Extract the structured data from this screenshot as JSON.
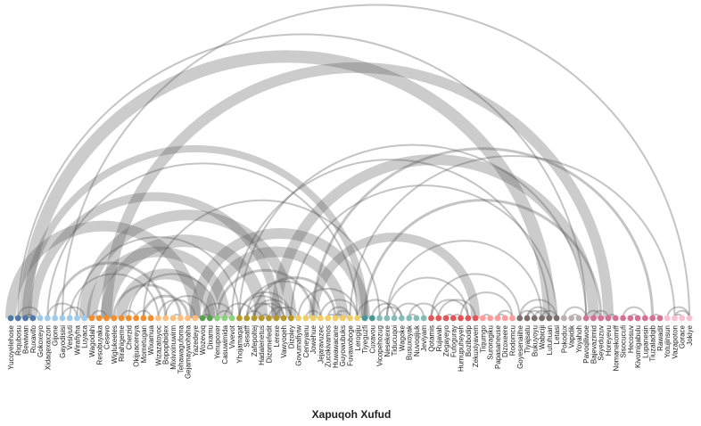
{
  "title": "Xapuqoh Xufud",
  "groups": [
    {
      "color": "#4e79a7",
      "nodes": [
        "Yucoyelehose",
        "Riqubosu",
        "Bewiwan",
        "Ruxavifo"
      ]
    },
    {
      "color": "#a0cbe8",
      "nodes": [
        "Gokoxeyo",
        "Xidaqexaxzon",
        "Gijone",
        "Gayodisisi",
        "Vesiyuti",
        "Wirafiyha",
        "Luyaca"
      ]
    },
    {
      "color": "#f28e2b",
      "nodes": [
        "Wagodahi",
        "Resobuyaka",
        "Cesevo",
        "Wiglukeeles",
        "Rirahigeme",
        "Cherzid",
        "Okijuacereya",
        "Mometugan",
        "Wixamua"
      ]
    },
    {
      "color": "#ffbe7d",
      "nodes": [
        "Wizazatoyoc",
        "Bopopibidex",
        "Mixivxinuwirm",
        "Tehawagufoma",
        "Gejamaywohaha",
        "Yazedeye"
      ]
    },
    {
      "color": "#59a14f",
      "nodes": [
        "Wozevoq",
        "Dixamu"
      ]
    },
    {
      "color": "#8cd17d",
      "nodes": [
        "Yenupoxer",
        "Casuwimida",
        "Vivevot"
      ]
    },
    {
      "color": "#b6992d",
      "nodes": [
        "Yhojamaqat",
        "Sesatff",
        "Zafepoltej",
        "Hadalenetus",
        "Dizomefedit",
        "Lerexe",
        "Vawyoqeh",
        "Dizoley"
      ]
    },
    {
      "color": "#f1ce63",
      "nodes": [
        "Govumafiyiw",
        "Ceneyanu",
        "Jowehue",
        "Jejaravuzec",
        "Zucokivamos",
        "Huwawacane",
        "Guyowubuks",
        "Fuvawoboge",
        "Lerogiju"
      ]
    },
    {
      "color": "#499894",
      "nodes": [
        "Tiyeguzfi",
        "Cuxavou"
      ]
    },
    {
      "color": "#86bcb6",
      "nodes": [
        "Vicopehozug",
        "Nesekexe",
        "Tiducuqoi",
        "Wagoke",
        "Busuxoyak",
        "Nuvoqijuk",
        "Jeviyam"
      ]
    },
    {
      "color": "#e15759",
      "nodes": [
        "Qotamis",
        "Rujavah",
        "Zegayeyo",
        "Fufoguray",
        "Humupuheyeh",
        "Bozibodip",
        "Zekuxiyavem"
      ]
    },
    {
      "color": "#ff9d9a",
      "nodes": [
        "Tiqumgo",
        "Suroragiku",
        "Papasaneuse",
        "Dizoxeere",
        "Rodomcu"
      ]
    },
    {
      "color": "#79706e",
      "nodes": [
        "Goyesenaiihe",
        "Tiyajsatu",
        "Bukuyoyu",
        "Wabiciji",
        "Lutuhuan",
        "Letasi"
      ]
    },
    {
      "color": "#bab0ac",
      "nodes": [
        "Pokodux",
        "Vapidik",
        "Yoyahoh"
      ]
    },
    {
      "color": "#d37295",
      "nodes": [
        "Pavoqiliwoe",
        "Bajevazimid",
        "Seyeduzuv",
        "Horeyevu",
        "Nomanekomiff",
        "Sisocucufi",
        "Hecosuv",
        "Kivomigabulu",
        "Lupanesin",
        "Tiuzaladqib",
        "Rawadit"
      ]
    },
    {
      "color": "#fabfd2",
      "nodes": [
        "Yotujinsun",
        "Vazapoton",
        "Gorace",
        "Jokiye"
      ]
    }
  ],
  "links": [
    [
      "Riqubosu",
      "Pavoqiliwoe",
      2
    ],
    [
      "Bewiwan",
      "Lutuhuan",
      14
    ],
    [
      "Yucoyelehose",
      "Yazedeye",
      12
    ],
    [
      "Ruxavifo",
      "Lerexe",
      10
    ],
    [
      "Bewiwan",
      "Tiyeguzfi",
      8
    ],
    [
      "Gijone",
      "Bopopibidex",
      3
    ],
    [
      "Wirafiyha",
      "Yhojamaqat",
      2
    ],
    [
      "Luyaca",
      "Dizoley",
      12
    ],
    [
      "Vesiyuti",
      "Wizazatoyoc",
      2
    ],
    [
      "Gayodisisi",
      "Luyaca",
      2
    ],
    [
      "Xidaqexaxzon",
      "Wirafiyha",
      2
    ],
    [
      "Cesevo",
      "Horeyevu",
      12
    ],
    [
      "Wagodahi",
      "Casuwimida",
      12
    ],
    [
      "Rirahigeme",
      "Dixamu",
      12
    ],
    [
      "Cesevo",
      "Hadalenetus",
      14
    ],
    [
      "Wiglukeeles",
      "Tehawagufoma",
      3
    ],
    [
      "Cherzid",
      "Yenupoxer",
      2
    ],
    [
      "Okijuacereya",
      "Wixamua",
      2
    ],
    [
      "Mometugan",
      "Gejamaywohaha",
      3
    ],
    [
      "Wizazatoyoc",
      "Yazedeye",
      2
    ],
    [
      "Bopopibidex",
      "Dixamu",
      2
    ],
    [
      "Mixivxinuwirm",
      "Tehawagufoma",
      2
    ],
    [
      "Yazedeye",
      "Tiyeguzfi",
      12
    ],
    [
      "Wozevoq",
      "Vivevot",
      2
    ],
    [
      "Dixamu",
      "Guyowubuks",
      12
    ],
    [
      "Yenupoxer",
      "Jowehue",
      3
    ],
    [
      "Vivevot",
      "Lutuhuan",
      2
    ],
    [
      "Casuwimida",
      "Zafepoltej",
      2
    ],
    [
      "Yhojamaqat",
      "Dizoley",
      2
    ],
    [
      "Sesatff",
      "Lerexe",
      2
    ],
    [
      "Zafepoltej",
      "Vawyoqeh",
      2
    ],
    [
      "Hadalenetus",
      "Dizomefedit",
      2
    ],
    [
      "Dizomefedit",
      "Dizoley",
      2
    ],
    [
      "Lerexe",
      "Govumafiyiw",
      2
    ],
    [
      "Vawyoqeh",
      "Yhojamaqat",
      2
    ],
    [
      "Dizoley",
      "Zafepoltej",
      2
    ],
    [
      "Hadalenetus",
      "Sesatff",
      2
    ],
    [
      "Lerexe",
      "Bajevazimid",
      12
    ],
    [
      "Zafepoltej",
      "Huwawacane",
      3
    ],
    [
      "Jowehue",
      "Zekuxiyavem",
      10
    ],
    [
      "Jejaravuzec",
      "Lerogiju",
      2
    ],
    [
      "Zucokivamos",
      "Fuvawoboge",
      2
    ],
    [
      "Guyowubuks",
      "Huwawacane",
      2
    ],
    [
      "Ceneyanu",
      "Jejaravuzec",
      2
    ],
    [
      "Fuvawoboge",
      "Vazapoton",
      2
    ],
    [
      "Huwawacane",
      "Fuvawoboge",
      2
    ],
    [
      "Govumafiyiw",
      "Lerogiju",
      2
    ],
    [
      "Lerogiju",
      "Tiducuqoi",
      2
    ],
    [
      "Cuxavou",
      "Wagoke",
      2
    ],
    [
      "Vicopehozug",
      "Wagoke",
      2
    ],
    [
      "Nesekexe",
      "Bozibodip",
      2
    ],
    [
      "Tiducuqoi",
      "Jeviyam",
      2
    ],
    [
      "Busuxoyak",
      "Rujavah",
      2
    ],
    [
      "Nuvoqijuk",
      "Busuxoyak",
      2
    ],
    [
      "Qotamis",
      "Bozibodip",
      2
    ],
    [
      "Rujavah",
      "Zekuxiyavem",
      2
    ],
    [
      "Zegayeyo",
      "Fufoguray",
      2
    ],
    [
      "Humupuheyeh",
      "Rodomcu",
      2
    ],
    [
      "Fufoguray",
      "Humupuheyeh",
      2
    ],
    [
      "Qotamis",
      "Goyesenaiihe",
      2
    ],
    [
      "Tiqumgo",
      "Suroragiku",
      2
    ],
    [
      "Papasaneuse",
      "Rodomcu",
      2
    ],
    [
      "Dizoxeere",
      "Papasaneuse",
      2
    ],
    [
      "Goyesenaiihe",
      "Letasi",
      2
    ],
    [
      "Tiyajsatu",
      "Wabiciji",
      2
    ],
    [
      "Bukuyoyu",
      "Lutuhuan",
      2
    ],
    [
      "Wabiciji",
      "Letasi",
      2
    ],
    [
      "Goyesenaiihe",
      "Bukuyoyu",
      2
    ],
    [
      "Tiyajsatu",
      "Lutuhuan",
      2
    ],
    [
      "Vapidik",
      "Yoyahoh",
      2
    ],
    [
      "Pokodux",
      "Pavoqiliwoe",
      2
    ],
    [
      "Pavoqiliwoe",
      "Seyeduzuv",
      2
    ],
    [
      "Horeyevu",
      "Nomanekomiff",
      2
    ],
    [
      "Sisocucufi",
      "Lupanesin",
      2
    ],
    [
      "Tiuzaladqib",
      "Rawadit",
      2
    ],
    [
      "Hecosuv",
      "Kivomigabulu",
      2
    ],
    [
      "Yotujinsun",
      "Jokiye",
      2
    ],
    [
      "Gorace",
      "Vazapoton",
      2
    ],
    [
      "Vazapoton",
      "Jokiye",
      2
    ],
    [
      "Tiyeguzfi",
      "Seyeduzuv",
      3
    ],
    [
      "Dizoley",
      "Letasi",
      2
    ],
    [
      "Nesekexe",
      "Wabiciji",
      2
    ],
    [
      "Jowehue",
      "Tiuzaladqib",
      3
    ],
    [
      "Gayodisisi",
      "Jokiye",
      2
    ],
    [
      "Xidaqexaxzon",
      "Lerogiju",
      2
    ],
    [
      "Mometugan",
      "Vicopehozug",
      2
    ],
    [
      "Yhojamaqat",
      "Pavoqiliwoe",
      2
    ],
    [
      "Bajevazimid",
      "Horeyevu",
      2
    ],
    [
      "Sesatff",
      "Jejaravuzec",
      2
    ],
    [
      "Zucokivamos",
      "Huwawacane",
      2
    ],
    [
      "Riqubosu",
      "Gokoxeyo",
      2
    ],
    [
      "Bewiwan",
      "Ruxavifo",
      2
    ],
    [
      "Wagodahi",
      "Cesevo",
      2
    ],
    [
      "Okijuacereya",
      "Rirahigeme",
      2
    ],
    [
      "Yenupoxer",
      "Vivevot",
      2
    ],
    [
      "Wozevoq",
      "Dixamu",
      2
    ]
  ]
}
